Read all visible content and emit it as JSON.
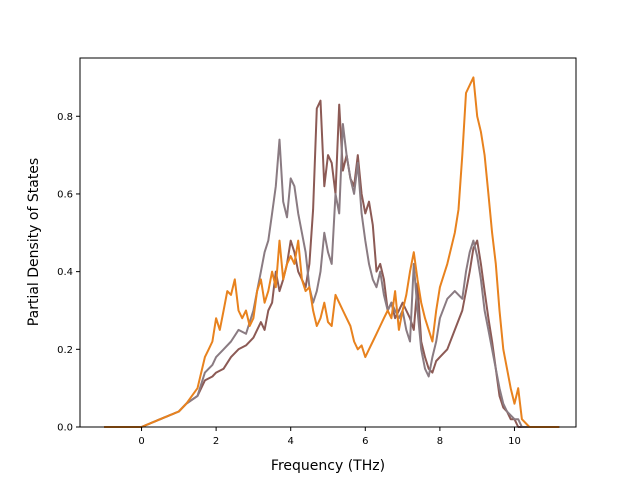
{
  "chart_data": {
    "type": "line",
    "title": "",
    "xlabel": "Frequency (THz)",
    "ylabel": "Partial Density of States",
    "xlim": [
      -1.65,
      11.65
    ],
    "ylim": [
      0.0,
      0.95
    ],
    "xticks": [
      0,
      2,
      4,
      6,
      8,
      10
    ],
    "yticks": [
      0.0,
      0.2,
      0.4,
      0.6,
      0.8
    ],
    "xtick_labels": [
      "0",
      "2",
      "4",
      "6",
      "8",
      "10"
    ],
    "ytick_labels": [
      "0.0",
      "0.2",
      "0.4",
      "0.6",
      "0.8"
    ],
    "grid": false,
    "legend": false,
    "series": [
      {
        "color": "#8c5a55",
        "x": [
          -1.0,
          0.0,
          0.5,
          1.0,
          1.2,
          1.5,
          1.7,
          1.9,
          2.0,
          2.2,
          2.4,
          2.6,
          2.8,
          3.0,
          3.2,
          3.3,
          3.4,
          3.5,
          3.6,
          3.7,
          3.8,
          3.9,
          4.0,
          4.1,
          4.2,
          4.3,
          4.4,
          4.5,
          4.6,
          4.7,
          4.8,
          4.9,
          5.0,
          5.1,
          5.2,
          5.3,
          5.4,
          5.5,
          5.6,
          5.7,
          5.8,
          5.9,
          6.0,
          6.1,
          6.2,
          6.3,
          6.4,
          6.5,
          6.6,
          6.7,
          6.8,
          6.9,
          7.0,
          7.1,
          7.2,
          7.3,
          7.4,
          7.5,
          7.6,
          7.7,
          7.8,
          7.9,
          8.0,
          8.2,
          8.4,
          8.6,
          8.8,
          8.9,
          9.0,
          9.1,
          9.2,
          9.3,
          9.4,
          9.5,
          9.6,
          9.7,
          9.8,
          9.9,
          10.0,
          10.1,
          10.2,
          10.4,
          11.2
        ],
        "values": [
          0.0,
          0.0,
          0.02,
          0.04,
          0.06,
          0.08,
          0.12,
          0.13,
          0.14,
          0.15,
          0.18,
          0.2,
          0.21,
          0.23,
          0.27,
          0.25,
          0.3,
          0.32,
          0.4,
          0.35,
          0.38,
          0.42,
          0.48,
          0.45,
          0.4,
          0.38,
          0.36,
          0.42,
          0.56,
          0.82,
          0.84,
          0.62,
          0.7,
          0.68,
          0.6,
          0.83,
          0.66,
          0.7,
          0.64,
          0.62,
          0.7,
          0.6,
          0.55,
          0.58,
          0.52,
          0.4,
          0.42,
          0.38,
          0.3,
          0.32,
          0.28,
          0.3,
          0.32,
          0.3,
          0.28,
          0.25,
          0.37,
          0.22,
          0.18,
          0.15,
          0.14,
          0.17,
          0.18,
          0.2,
          0.25,
          0.3,
          0.4,
          0.46,
          0.48,
          0.42,
          0.35,
          0.28,
          0.22,
          0.15,
          0.08,
          0.05,
          0.04,
          0.02,
          0.02,
          0.0,
          0.0,
          0.0,
          0.0
        ]
      },
      {
        "color": "#8a7b82",
        "x": [
          -1.0,
          0.0,
          0.5,
          1.0,
          1.2,
          1.5,
          1.7,
          1.9,
          2.0,
          2.2,
          2.4,
          2.6,
          2.8,
          3.0,
          3.1,
          3.2,
          3.3,
          3.4,
          3.5,
          3.6,
          3.7,
          3.8,
          3.9,
          4.0,
          4.1,
          4.2,
          4.3,
          4.4,
          4.5,
          4.6,
          4.7,
          4.8,
          4.9,
          5.0,
          5.1,
          5.2,
          5.3,
          5.4,
          5.5,
          5.6,
          5.7,
          5.8,
          5.9,
          6.0,
          6.1,
          6.2,
          6.3,
          6.4,
          6.5,
          6.6,
          6.7,
          6.8,
          6.9,
          7.0,
          7.1,
          7.2,
          7.3,
          7.4,
          7.5,
          7.6,
          7.7,
          7.8,
          7.9,
          8.0,
          8.2,
          8.4,
          8.6,
          8.7,
          8.8,
          8.9,
          9.0,
          9.1,
          9.2,
          9.3,
          9.4,
          9.5,
          9.6,
          9.7,
          9.8,
          9.9,
          10.0,
          10.1,
          10.2,
          10.4,
          11.2
        ],
        "values": [
          0.0,
          0.0,
          0.02,
          0.04,
          0.06,
          0.08,
          0.14,
          0.16,
          0.18,
          0.2,
          0.22,
          0.25,
          0.24,
          0.3,
          0.35,
          0.4,
          0.45,
          0.48,
          0.55,
          0.62,
          0.74,
          0.58,
          0.54,
          0.64,
          0.62,
          0.55,
          0.5,
          0.45,
          0.36,
          0.32,
          0.35,
          0.4,
          0.5,
          0.45,
          0.42,
          0.6,
          0.55,
          0.78,
          0.7,
          0.64,
          0.6,
          0.68,
          0.55,
          0.48,
          0.42,
          0.38,
          0.36,
          0.4,
          0.34,
          0.3,
          0.32,
          0.3,
          0.28,
          0.3,
          0.25,
          0.22,
          0.42,
          0.3,
          0.2,
          0.15,
          0.13,
          0.18,
          0.22,
          0.28,
          0.33,
          0.35,
          0.33,
          0.4,
          0.45,
          0.48,
          0.44,
          0.38,
          0.3,
          0.25,
          0.2,
          0.15,
          0.1,
          0.06,
          0.04,
          0.03,
          0.02,
          0.02,
          0.0,
          0.0,
          0.0
        ]
      },
      {
        "color": "#e8821e",
        "x": [
          -1.0,
          0.0,
          0.5,
          1.0,
          1.2,
          1.5,
          1.7,
          1.8,
          1.9,
          2.0,
          2.1,
          2.2,
          2.3,
          2.4,
          2.5,
          2.6,
          2.7,
          2.8,
          2.9,
          3.0,
          3.1,
          3.2,
          3.3,
          3.4,
          3.5,
          3.6,
          3.7,
          3.8,
          3.9,
          4.0,
          4.1,
          4.2,
          4.3,
          4.4,
          4.5,
          4.6,
          4.7,
          4.8,
          4.9,
          5.0,
          5.1,
          5.2,
          5.3,
          5.4,
          5.5,
          5.6,
          5.7,
          5.8,
          5.9,
          6.0,
          6.1,
          6.2,
          6.3,
          6.4,
          6.5,
          6.6,
          6.7,
          6.8,
          6.9,
          7.0,
          7.1,
          7.2,
          7.3,
          7.4,
          7.5,
          7.6,
          7.7,
          7.8,
          7.9,
          8.0,
          8.2,
          8.4,
          8.5,
          8.6,
          8.7,
          8.8,
          8.9,
          9.0,
          9.1,
          9.2,
          9.3,
          9.4,
          9.5,
          9.6,
          9.7,
          9.8,
          9.9,
          10.0,
          10.1,
          10.2,
          10.4,
          11.2
        ],
        "values": [
          0.0,
          0.0,
          0.02,
          0.04,
          0.06,
          0.1,
          0.18,
          0.2,
          0.22,
          0.28,
          0.25,
          0.3,
          0.35,
          0.34,
          0.38,
          0.3,
          0.28,
          0.3,
          0.26,
          0.28,
          0.35,
          0.38,
          0.32,
          0.35,
          0.4,
          0.36,
          0.48,
          0.38,
          0.42,
          0.44,
          0.42,
          0.48,
          0.38,
          0.35,
          0.36,
          0.3,
          0.26,
          0.28,
          0.32,
          0.27,
          0.26,
          0.34,
          0.32,
          0.3,
          0.28,
          0.26,
          0.22,
          0.2,
          0.21,
          0.18,
          0.2,
          0.22,
          0.24,
          0.26,
          0.28,
          0.3,
          0.28,
          0.35,
          0.25,
          0.3,
          0.34,
          0.4,
          0.45,
          0.38,
          0.32,
          0.28,
          0.25,
          0.22,
          0.3,
          0.36,
          0.42,
          0.5,
          0.56,
          0.7,
          0.86,
          0.88,
          0.9,
          0.8,
          0.76,
          0.7,
          0.6,
          0.5,
          0.42,
          0.3,
          0.2,
          0.15,
          0.1,
          0.06,
          0.1,
          0.02,
          0.0,
          0.0
        ]
      }
    ]
  }
}
